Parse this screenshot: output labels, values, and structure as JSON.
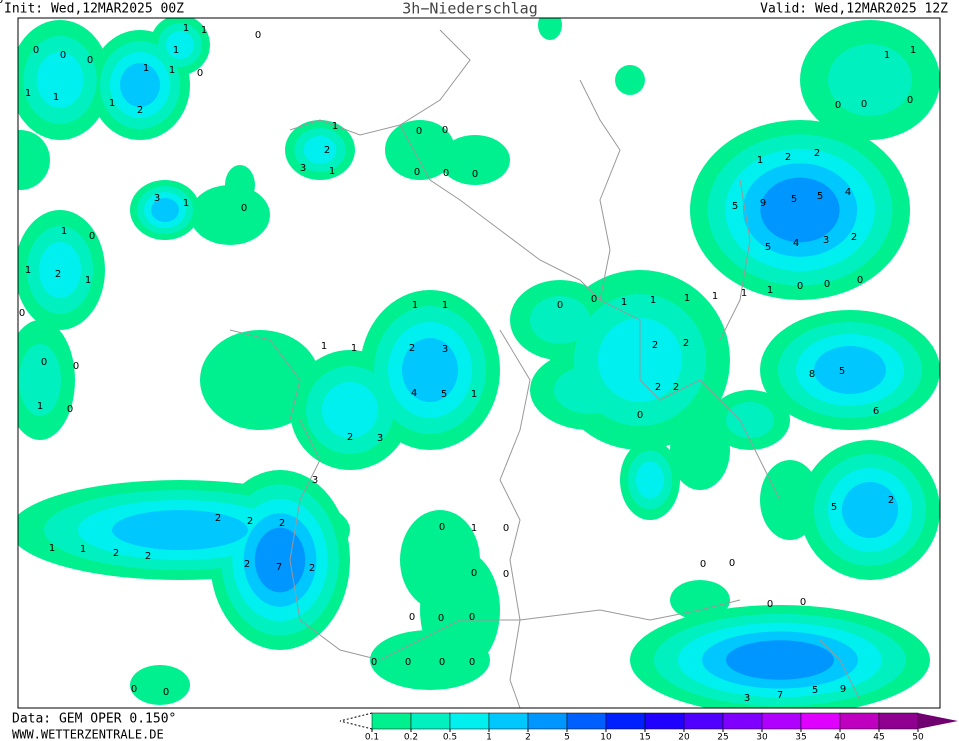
{
  "header": {
    "init": "Init: Wed,12MAR2025 00Z",
    "title": "3h−Niederschlag",
    "valid": "Valid: Wed,12MAR2025 12Z"
  },
  "footer": {
    "source": "Data: GEM OPER 0.150°",
    "url": "WWW.WETTERZENTRALE.DE"
  },
  "legend": {
    "ticks": [
      0.1,
      0.2,
      0.5,
      1,
      2,
      5,
      10,
      15,
      20,
      25,
      30,
      35,
      40,
      45,
      50
    ],
    "colors": [
      "#00f090",
      "#00f0c0",
      "#00f0f0",
      "#00c8ff",
      "#0096ff",
      "#0060ff",
      "#0020ff",
      "#2000ff",
      "#5000ff",
      "#8000ff",
      "#b000ff",
      "#e000ff",
      "#c000c0",
      "#900090",
      "#700070"
    ]
  },
  "map_values": [
    0,
    0,
    0,
    1,
    1,
    1,
    2,
    1,
    1,
    1,
    1,
    1,
    0,
    0,
    1,
    2,
    3,
    1,
    3,
    1,
    0,
    1,
    0,
    1,
    2,
    1,
    0,
    0,
    0,
    1,
    0,
    1,
    1,
    2,
    3,
    4,
    5,
    1,
    1,
    1,
    3,
    2,
    3,
    7,
    2,
    2,
    2,
    2,
    2,
    1,
    1,
    2,
    2,
    9,
    5,
    5,
    4,
    5,
    5,
    4,
    3,
    2,
    8,
    5,
    6,
    5,
    2,
    7,
    5,
    9,
    3,
    2,
    2,
    2,
    0,
    2,
    0,
    0,
    1,
    1,
    1,
    1,
    1,
    1,
    0,
    0,
    0,
    0,
    0,
    0,
    1,
    1,
    2,
    2,
    1,
    0,
    0,
    0,
    0,
    0,
    0,
    1,
    0,
    0,
    0,
    0,
    0,
    0,
    0,
    0,
    0,
    0,
    0,
    0,
    0,
    0,
    0,
    0,
    0
  ]
}
